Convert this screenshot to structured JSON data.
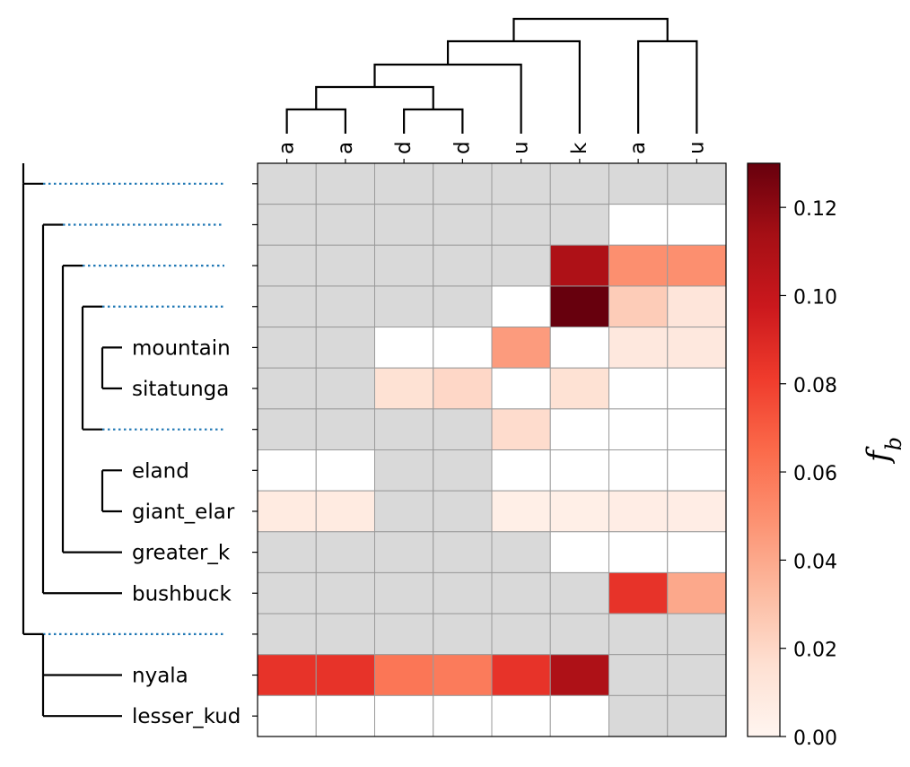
{
  "chart_data": {
    "type": "heatmap",
    "title": "",
    "colorbar": {
      "label": "f_b",
      "label_main": "f",
      "label_sub": "b",
      "ticks": [
        "0.00",
        "0.02",
        "0.04",
        "0.06",
        "0.08",
        "0.10",
        "0.12"
      ],
      "tick_values": [
        0,
        0.02,
        0.04,
        0.06,
        0.08,
        0.1,
        0.12
      ],
      "range": [
        0,
        0.13
      ],
      "colormap": "Reds"
    },
    "columns": [
      "a",
      "a",
      "d",
      "d",
      "u",
      "k",
      "a",
      "u"
    ],
    "column_label_rotation": "rotated 90 degrees, clipped",
    "rows": [
      "",
      "",
      "",
      "",
      "mountain",
      "sitatunga",
      "",
      "eland",
      "giant_elar",
      "greater_k",
      "bushbuck",
      "",
      "nyala",
      "lesser_kud"
    ],
    "missing_color": "#d9d9d9",
    "values": [
      [
        null,
        null,
        null,
        null,
        null,
        null,
        null,
        null
      ],
      [
        null,
        null,
        null,
        null,
        null,
        null,
        0.0,
        0.0
      ],
      [
        null,
        null,
        null,
        null,
        null,
        0.11,
        0.05,
        0.05
      ],
      [
        null,
        null,
        null,
        null,
        0.0,
        0.13,
        0.025,
        0.012
      ],
      [
        null,
        null,
        0.0,
        0.0,
        0.045,
        0.0,
        0.01,
        0.01
      ],
      [
        null,
        null,
        0.015,
        0.02,
        0.0,
        0.015,
        0.0,
        0.0
      ],
      [
        null,
        null,
        null,
        null,
        0.018,
        0.0,
        0.0,
        0.0
      ],
      [
        0.0,
        0.0,
        null,
        null,
        0.0,
        0.0,
        0.0,
        0.0
      ],
      [
        0.008,
        0.008,
        null,
        null,
        0.005,
        0.005,
        0.006,
        0.006
      ],
      [
        null,
        null,
        null,
        null,
        null,
        0.0,
        0.0,
        0.0
      ],
      [
        null,
        null,
        null,
        null,
        null,
        null,
        0.085,
        0.04
      ],
      [
        null,
        null,
        null,
        null,
        null,
        null,
        null,
        null
      ],
      [
        0.085,
        0.085,
        0.06,
        0.058,
        0.085,
        0.11,
        null,
        null
      ],
      [
        0.0,
        0.0,
        0.0,
        0.0,
        0.0,
        0.0,
        null,
        null
      ]
    ],
    "grid": true,
    "row_dendrogram": "left, with dotted blue leads for unlabeled internal nodes",
    "column_dendrogram": "top"
  }
}
